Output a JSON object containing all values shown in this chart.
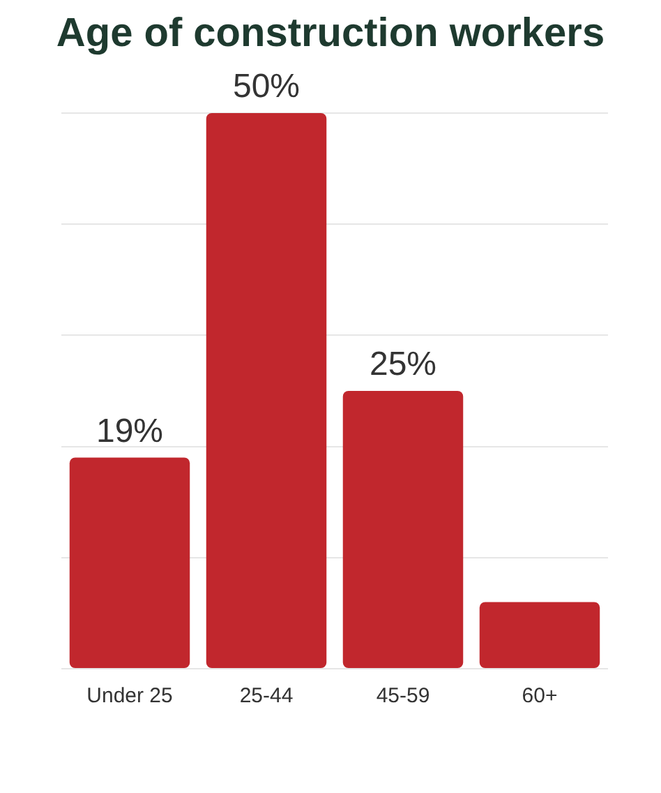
{
  "chart_data": {
    "type": "bar",
    "title": "Age of construction workers",
    "categories": [
      "Under 25",
      "25-44",
      "45-59",
      "60+"
    ],
    "values": [
      19,
      50,
      25,
      6
    ],
    "value_labels": [
      "19%",
      "50%",
      "25%",
      null
    ],
    "color": "#c1272d",
    "ylim": [
      0,
      50
    ],
    "yticks": [
      {
        "value": 0,
        "label": null
      },
      {
        "value": 10,
        "label": null
      },
      {
        "value": 20,
        "label": null
      },
      {
        "value": 30,
        "label": null
      },
      {
        "value": 40,
        "label": null
      },
      {
        "value": 50,
        "label": null
      }
    ],
    "grid": "y",
    "legend": false
  }
}
